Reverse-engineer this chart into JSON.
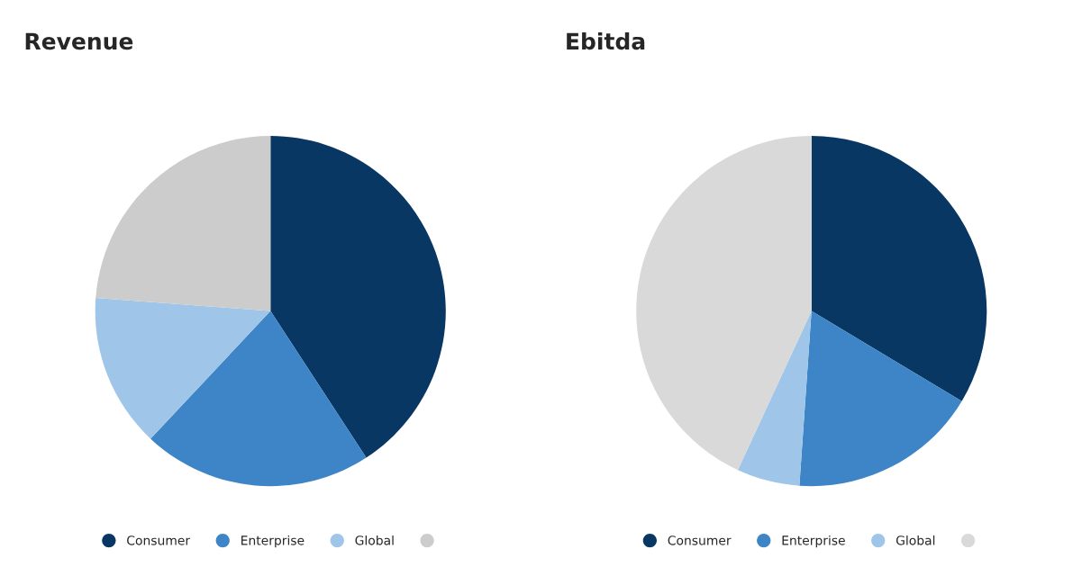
{
  "chart_data": [
    {
      "type": "pie",
      "title": "Revenue",
      "categories": [
        "Consumer",
        "Enterprise",
        "Global",
        null
      ],
      "values": [
        40.8,
        21.2,
        14.2,
        23.8
      ],
      "colors": [
        "#083763",
        "#3d85c6",
        "#9fc5e8",
        "#cccccc"
      ],
      "legend": "bottom"
    },
    {
      "type": "pie",
      "title": "Ebitda",
      "categories": [
        "Consumer",
        "Enterprise",
        "Global",
        null
      ],
      "values": [
        33.6,
        17.5,
        5.8,
        43.1
      ],
      "colors": [
        "#083763",
        "#3d85c6",
        "#9fc5e8",
        "#d9d9d9"
      ],
      "legend": "bottom"
    }
  ]
}
